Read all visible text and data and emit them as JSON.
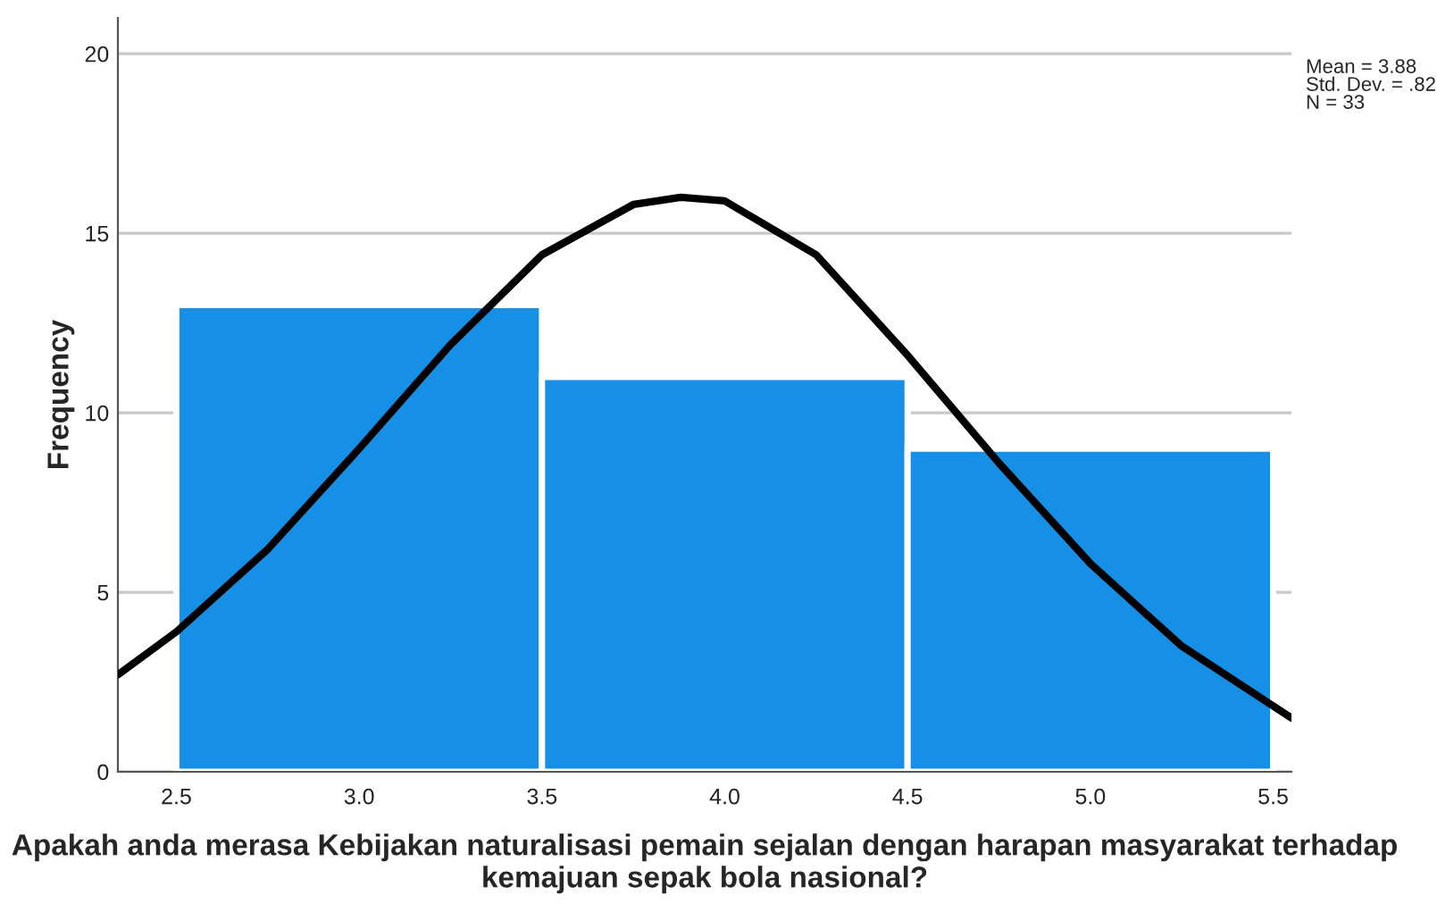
{
  "chart_data": {
    "type": "histogram",
    "xlabel": "Apakah anda merasa Kebijakan naturalisasi pemain sejalan dengan harapan masyarakat terhadap kemajuan sepak bola nasional?",
    "ylabel": "Frequency",
    "bins": [
      2.5,
      3.5,
      4.5,
      5.5
    ],
    "values": [
      13,
      11,
      9
    ],
    "color": "#1690e6",
    "series": [
      {
        "type": "line",
        "color": "#000000",
        "x": [
          2.34,
          2.5,
          2.75,
          3.0,
          3.25,
          3.5,
          3.75,
          3.88,
          4.0,
          4.25,
          4.5,
          4.75,
          5.0,
          5.25,
          5.55
        ],
        "values": [
          2.7,
          3.9,
          6.2,
          9.0,
          11.9,
          14.4,
          15.8,
          16.0,
          15.9,
          14.4,
          11.6,
          8.6,
          5.8,
          3.5,
          1.5
        ]
      }
    ],
    "xlim": [
      2.34,
      5.55
    ],
    "xticks": [
      2.5,
      {
        "value": 3.0,
        "label": "3.0"
      },
      3.5,
      {
        "value": 4.0,
        "label": "4.0"
      },
      4.5,
      {
        "value": 5.0,
        "label": "5.0"
      },
      5.5
    ],
    "ylim": [
      0,
      21
    ],
    "yticks": [
      0,
      5,
      10,
      15,
      20
    ],
    "grid": "y",
    "annotations": [
      "Mean = 3.88",
      "Std. Dev. = .82",
      "N = 33"
    ]
  }
}
